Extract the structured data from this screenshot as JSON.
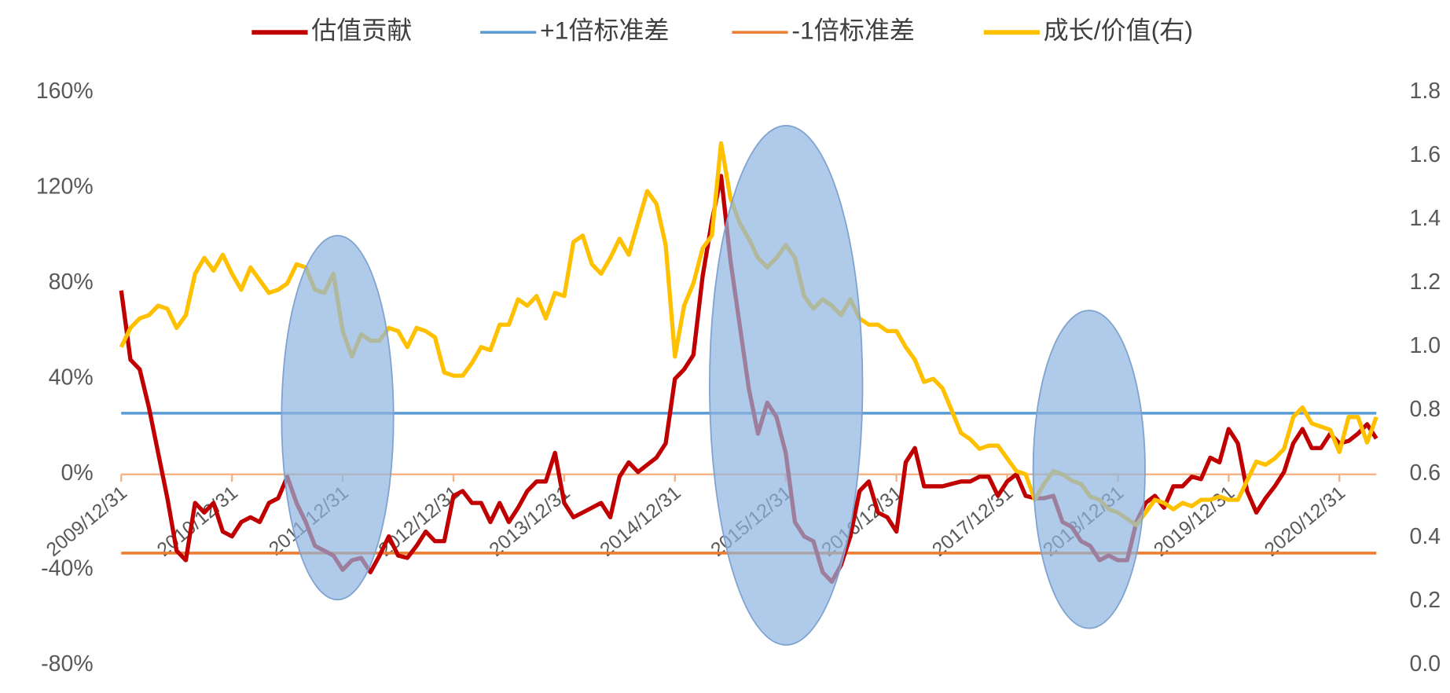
{
  "chart_data": {
    "type": "line",
    "categories": [
      "2009/12/31",
      null,
      null,
      null,
      null,
      null,
      null,
      null,
      null,
      null,
      null,
      null,
      "2010/12/31",
      null,
      null,
      null,
      null,
      null,
      null,
      null,
      null,
      null,
      null,
      null,
      "2011/12/31",
      null,
      null,
      null,
      null,
      null,
      null,
      null,
      null,
      null,
      null,
      null,
      "2012/12/31",
      null,
      null,
      null,
      null,
      null,
      null,
      null,
      null,
      null,
      null,
      null,
      "2013/12/31",
      null,
      null,
      null,
      null,
      null,
      null,
      null,
      null,
      null,
      null,
      null,
      "2014/12/31",
      null,
      null,
      null,
      null,
      null,
      null,
      null,
      null,
      null,
      null,
      null,
      "2015/12/31",
      null,
      null,
      null,
      null,
      null,
      null,
      null,
      null,
      null,
      null,
      null,
      "2016/12/31",
      null,
      null,
      null,
      null,
      null,
      null,
      null,
      null,
      null,
      null,
      null,
      "2017/12/31",
      null,
      null,
      null,
      null,
      null,
      null,
      null,
      null,
      null,
      null,
      null,
      "2018/12/31",
      null,
      null,
      null,
      null,
      null,
      null,
      null,
      null,
      null,
      null,
      null,
      "2019/12/31",
      null,
      null,
      null,
      null,
      null,
      null,
      null,
      null,
      null,
      null,
      null,
      "2020/12/31",
      null,
      null,
      null,
      null
    ],
    "series": [
      {
        "name": "估值贡献",
        "color": "#c00000",
        "axis": "y",
        "values": [
          77,
          48,
          44,
          28,
          9,
          -10,
          -32,
          -36,
          -12,
          -16,
          -12,
          -24,
          -26,
          -20,
          -18,
          -20,
          -12,
          -10,
          -1,
          -12,
          -20,
          -30,
          -32,
          -34,
          -40,
          -36,
          -35,
          -41,
          -34,
          -26,
          -34,
          -35,
          -30,
          -24,
          -28,
          -28,
          -9,
          -7,
          -12,
          -12,
          -20,
          -12,
          -20,
          -14,
          -7,
          -3,
          -3,
          9,
          -12,
          -18,
          -16,
          -14,
          -12,
          -18,
          -1,
          5,
          1,
          4,
          7,
          13,
          40,
          44,
          50,
          83,
          106,
          125,
          90,
          63,
          36,
          17,
          30,
          24,
          9,
          -20,
          -26,
          -28,
          -41,
          -45,
          -38,
          -26,
          -7,
          -3,
          -16,
          -18,
          -24,
          5,
          11,
          -5,
          -5,
          -5,
          -4,
          -3,
          -3,
          -1,
          -1,
          -9,
          -3,
          0,
          -9,
          -10,
          -10,
          -9,
          -20,
          -22,
          -28,
          -30,
          -36,
          -34,
          -36,
          -36,
          -20,
          -12,
          -9,
          -14,
          -5,
          -5,
          -1,
          -2,
          7,
          5,
          19,
          13,
          -7,
          -16,
          -10,
          -5,
          1,
          13,
          19,
          11,
          11,
          17,
          13,
          14,
          17,
          21,
          15
        ]
      },
      {
        "name": "+1倍标准差",
        "color": "#5b9bd5",
        "axis": "y",
        "value": 25.6
      },
      {
        "name": "-1倍标准差",
        "color": "#ed7d31",
        "axis": "y",
        "value": -33
      },
      {
        "name": "成长/价值(右)",
        "color": "#ffc000",
        "axis": "y2",
        "values": [
          1.0,
          1.06,
          1.09,
          1.1,
          1.13,
          1.12,
          1.06,
          1.1,
          1.23,
          1.28,
          1.24,
          1.29,
          1.23,
          1.18,
          1.25,
          1.21,
          1.17,
          1.18,
          1.2,
          1.26,
          1.25,
          1.18,
          1.17,
          1.23,
          1.05,
          0.97,
          1.04,
          1.02,
          1.02,
          1.06,
          1.05,
          1.0,
          1.06,
          1.05,
          1.03,
          0.92,
          0.91,
          0.91,
          0.95,
          1.0,
          0.99,
          1.07,
          1.07,
          1.15,
          1.13,
          1.16,
          1.09,
          1.17,
          1.16,
          1.33,
          1.35,
          1.26,
          1.23,
          1.28,
          1.34,
          1.29,
          1.39,
          1.49,
          1.45,
          1.32,
          0.97,
          1.13,
          1.2,
          1.31,
          1.35,
          1.64,
          1.47,
          1.39,
          1.34,
          1.28,
          1.25,
          1.28,
          1.32,
          1.28,
          1.16,
          1.12,
          1.15,
          1.13,
          1.1,
          1.15,
          1.09,
          1.07,
          1.07,
          1.05,
          1.05,
          1.0,
          0.96,
          0.89,
          0.9,
          0.87,
          0.8,
          0.73,
          0.71,
          0.68,
          0.69,
          0.69,
          0.65,
          0.61,
          0.6,
          0.52,
          0.57,
          0.61,
          0.6,
          0.58,
          0.57,
          0.53,
          0.52,
          0.49,
          0.48,
          0.46,
          0.44,
          0.48,
          0.52,
          0.51,
          0.49,
          0.51,
          0.5,
          0.52,
          0.52,
          0.53,
          0.52,
          0.52,
          0.58,
          0.64,
          0.63,
          0.65,
          0.68,
          0.78,
          0.81,
          0.76,
          0.75,
          0.74,
          0.67,
          0.78,
          0.78,
          0.7,
          0.78
        ]
      }
    ],
    "ylim": [
      -80,
      160
    ],
    "yticks": [
      {
        "value": -80,
        "label": "-80%"
      },
      {
        "value": -40,
        "label": "-40%"
      },
      {
        "value": 0,
        "label": "0%"
      },
      {
        "value": 40,
        "label": "40%"
      },
      {
        "value": 80,
        "label": "80%"
      },
      {
        "value": 120,
        "label": "120%"
      },
      {
        "value": 160,
        "label": "160%"
      }
    ],
    "y2lim": [
      0,
      1.8
    ],
    "y2ticks": [
      {
        "value": 0,
        "label": "0.0"
      },
      0.2,
      0.4,
      0.6,
      0.8,
      {
        "value": 1,
        "label": "1.0"
      },
      1.2,
      1.4,
      1.6,
      1.8
    ],
    "legend": "top"
  }
}
